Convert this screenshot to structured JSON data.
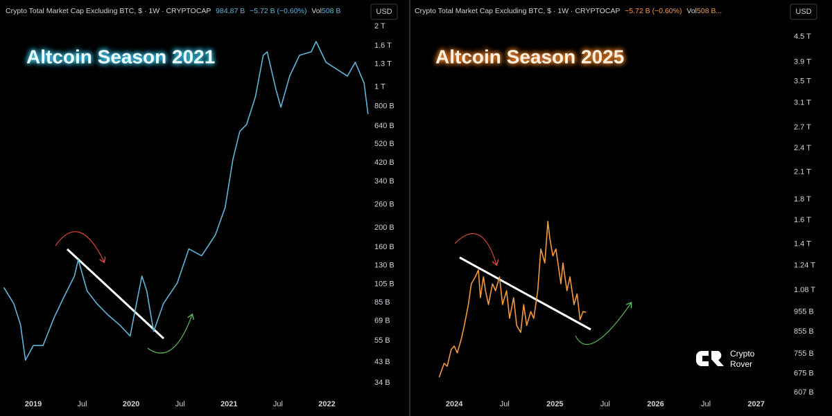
{
  "chart_data": [
    {
      "type": "line",
      "title": "Altcoin Season 2021",
      "currency": "USD",
      "header": {
        "symbol": "Crypto Total Market Cap Excluding BTC, $ · 1W · CRYPTOCAP",
        "last": "984.87 B",
        "change": "−5.72 B (−0.60%)",
        "vol_label": "Vol",
        "vol": "508 B"
      },
      "color": "#5fb6da",
      "log": true,
      "grid": false,
      "xlim": [
        2018.66,
        2022.45
      ],
      "xticks": [
        2019,
        {
          "value": 2019.5,
          "label": "Jul"
        },
        2020,
        {
          "value": 2020.5,
          "label": "Jul"
        },
        2021,
        {
          "value": 2021.5,
          "label": "Jul"
        },
        2022
      ],
      "ylim": [
        29.7,
        2164
      ],
      "yticks": [
        {
          "value": 2000,
          "label": "2 T"
        },
        {
          "value": 1600,
          "label": "1.6 T"
        },
        {
          "value": 1300,
          "label": "1.3 T"
        },
        {
          "value": 1000,
          "label": "1 T"
        },
        {
          "value": 800,
          "label": "800 B"
        },
        {
          "value": 640,
          "label": "640 B"
        },
        {
          "value": 520,
          "label": "520 B"
        },
        {
          "value": 420,
          "label": "420 B"
        },
        {
          "value": 340,
          "label": "340 B"
        },
        {
          "value": 260,
          "label": "260 B"
        },
        {
          "value": 200,
          "label": "200 B"
        },
        {
          "value": 160,
          "label": "160 B"
        },
        {
          "value": 130,
          "label": "130 B"
        },
        {
          "value": 105,
          "label": "105 B"
        },
        {
          "value": 85,
          "label": "85 B"
        },
        {
          "value": 69,
          "label": "69 B"
        },
        {
          "value": 55,
          "label": "55 B"
        },
        {
          "value": 43,
          "label": "43 B"
        },
        {
          "value": 34,
          "label": "34 B"
        }
      ],
      "x": [
        2018.7,
        2018.8,
        2018.87,
        2018.92,
        2019.0,
        2019.1,
        2019.21,
        2019.31,
        2019.42,
        2019.46,
        2019.55,
        2019.65,
        2019.76,
        2019.88,
        2019.99,
        2020.08,
        2020.11,
        2020.16,
        2020.23,
        2020.33,
        2020.47,
        2020.59,
        2020.72,
        2020.86,
        2020.96,
        2021.04,
        2021.11,
        2021.18,
        2021.27,
        2021.35,
        2021.39,
        2021.48,
        2021.53,
        2021.62,
        2021.72,
        2021.84,
        2021.89,
        2021.99,
        2022.1,
        2022.21,
        2022.29,
        2022.38,
        2022.42
      ],
      "values": [
        101,
        84,
        66,
        44,
        52,
        52,
        71,
        90,
        115,
        139,
        97,
        84,
        74,
        66,
        58,
        97,
        115,
        97,
        61,
        84,
        106,
        157,
        145,
        184,
        252,
        438,
        601,
        651,
        893,
        1435,
        1493,
        967,
        793,
        1132,
        1435,
        1493,
        1680,
        1326,
        1225,
        1132,
        1326,
        1046,
        733
      ]
    },
    {
      "type": "line",
      "title": "Altcoin Season 2025",
      "currency": "USD",
      "header": {
        "symbol": "Crypto Total Market Cap Excluding BTC, $ · 1W · CRYPTOCAP",
        "change": "−5.72 B (−0.60%)",
        "vol_label": "Vol",
        "vol": "508 B..."
      },
      "color": "#f59a3c",
      "log": true,
      "grid": false,
      "xlim": [
        2023.62,
        2027.34
      ],
      "xticks": [
        2024,
        {
          "value": 2024.5,
          "label": "Jul"
        },
        2025,
        {
          "value": 2025.5,
          "label": "Jul"
        },
        2026,
        {
          "value": 2026.5,
          "label": "Jul"
        },
        2027
      ],
      "ylim": [
        595,
        4960
      ],
      "yticks": [
        {
          "value": 4500,
          "label": "4.5 T"
        },
        {
          "value": 3900,
          "label": "3.9 T"
        },
        {
          "value": 3500,
          "label": "3.5 T"
        },
        {
          "value": 3100,
          "label": "3.1 T"
        },
        {
          "value": 2700,
          "label": "2.7 T"
        },
        {
          "value": 2400,
          "label": "2.4 T"
        },
        {
          "value": 2100,
          "label": "2.1 T"
        },
        {
          "value": 1800,
          "label": "1.8 T"
        },
        {
          "value": 1600,
          "label": "1.6 T"
        },
        {
          "value": 1400,
          "label": "1.4 T"
        },
        {
          "value": 1240,
          "label": "1.24 T"
        },
        {
          "value": 1080,
          "label": "1.08 T"
        },
        {
          "value": 955,
          "label": "955 B"
        },
        {
          "value": 855,
          "label": "855 B"
        },
        {
          "value": 755,
          "label": "755 B"
        },
        {
          "value": 675,
          "label": "675 B"
        },
        {
          "value": 607,
          "label": "607 B"
        }
      ],
      "x": [
        2023.85,
        2023.9,
        2023.93,
        2023.97,
        2024.0,
        2024.03,
        2024.07,
        2024.1,
        2024.14,
        2024.17,
        2024.21,
        2024.24,
        2024.26,
        2024.29,
        2024.31,
        2024.34,
        2024.38,
        2024.41,
        2024.45,
        2024.48,
        2024.52,
        2024.55,
        2024.59,
        2024.62,
        2024.66,
        2024.69,
        2024.72,
        2024.76,
        2024.79,
        2024.83,
        2024.86,
        2024.9,
        2024.93,
        2024.95,
        2024.98,
        2025.01,
        2025.06,
        2025.08,
        2025.12,
        2025.15,
        2025.19,
        2025.22,
        2025.25,
        2025.28,
        2025.31
      ],
      "values": [
        661,
        715,
        703,
        773,
        788,
        758,
        819,
        885,
        995,
        1119,
        1164,
        1210,
        1035,
        1164,
        1076,
        995,
        1119,
        1076,
        1164,
        995,
        1076,
        921,
        1035,
        885,
        851,
        995,
        885,
        957,
        921,
        1076,
        1361,
        1258,
        1590,
        1442,
        1309,
        1361,
        1119,
        1258,
        1076,
        1164,
        995,
        1057,
        914,
        957,
        953
      ]
    }
  ],
  "logo": [
    "Crypto",
    "Rover"
  ]
}
